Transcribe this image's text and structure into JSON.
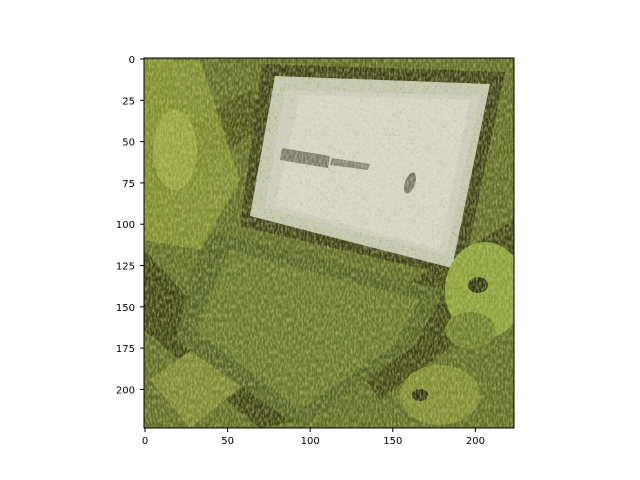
{
  "image": {
    "description_icon": "texture-image-icon",
    "palette": {
      "moss": "#5f6b27",
      "olive_dark": "#2f3410",
      "yellow_green": "#9fae45",
      "screen_gray": "#c9cbbf",
      "screen_light": "#e3e3d8"
    }
  },
  "axes": {
    "x_ticks": [
      "0",
      "50",
      "100",
      "150",
      "200"
    ],
    "y_ticks": [
      "0",
      "25",
      "50",
      "75",
      "100",
      "125",
      "150",
      "175",
      "200"
    ],
    "x_range": [
      0,
      224
    ],
    "y_range": [
      0,
      224
    ],
    "y_inverted": true
  }
}
